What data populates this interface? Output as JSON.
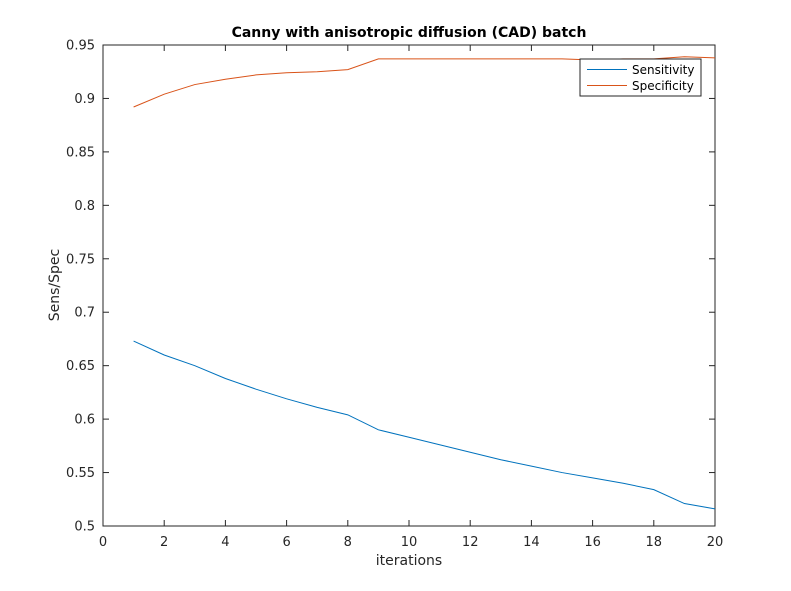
{
  "chart_data": {
    "type": "line",
    "title": "Canny with anisotropic diffusion (CAD) batch",
    "xlabel": "iterations",
    "ylabel": "Sens/Spec",
    "xlim": [
      0,
      20
    ],
    "ylim": [
      0.5,
      0.95
    ],
    "xticks": [
      0,
      2,
      4,
      6,
      8,
      10,
      12,
      14,
      16,
      18,
      20
    ],
    "xtick_labels": [
      "0",
      "2",
      "4",
      "6",
      "8",
      "10",
      "12",
      "14",
      "16",
      "18",
      "20"
    ],
    "yticks": [
      0.5,
      0.55,
      0.6,
      0.65,
      0.7,
      0.75,
      0.8,
      0.85,
      0.9,
      0.95
    ],
    "ytick_labels": [
      "0.5",
      "0.55",
      "0.6",
      "0.65",
      "0.7",
      "0.75",
      "0.8",
      "0.85",
      "0.9",
      "0.95"
    ],
    "grid": false,
    "legend_position": "top-right",
    "x": [
      1,
      2,
      3,
      4,
      5,
      6,
      7,
      8,
      9,
      10,
      11,
      12,
      13,
      14,
      15,
      16,
      17,
      18,
      19,
      20
    ],
    "series": [
      {
        "name": "Sensitivity",
        "color": "#0072BD",
        "values": [
          0.673,
          0.66,
          0.65,
          0.638,
          0.628,
          0.619,
          0.611,
          0.604,
          0.59,
          0.583,
          0.576,
          0.569,
          0.562,
          0.556,
          0.55,
          0.545,
          0.54,
          0.534,
          0.521,
          0.516
        ]
      },
      {
        "name": "Specificity",
        "color": "#D95319",
        "values": [
          0.892,
          0.904,
          0.913,
          0.918,
          0.922,
          0.924,
          0.925,
          0.927,
          0.937,
          0.937,
          0.937,
          0.937,
          0.937,
          0.937,
          0.937,
          0.936,
          0.937,
          0.937,
          0.939,
          0.938
        ]
      }
    ]
  }
}
